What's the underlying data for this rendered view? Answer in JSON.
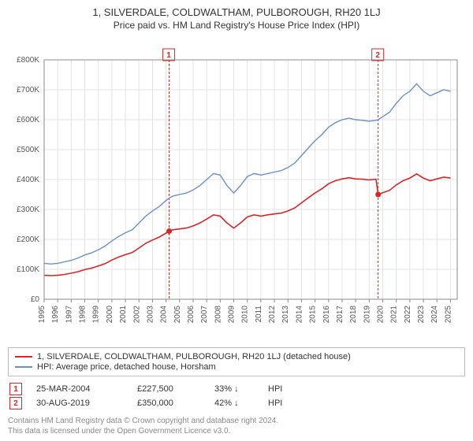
{
  "title": "1, SILVERDALE, COLDWALTHAM, PULBOROUGH, RH20 1LJ",
  "subtitle": "Price paid vs. HM Land Registry's House Price Index (HPI)",
  "chart": {
    "type": "line",
    "background_color": "#ffffff",
    "grid_color": "#e3e3e3",
    "axis_color": "#888888",
    "tick_font_size": 10,
    "tick_color": "#555555",
    "x": {
      "min": 1995,
      "max": 2025.5,
      "ticks": [
        1995,
        1996,
        1997,
        1998,
        1999,
        2000,
        2001,
        2002,
        2003,
        2004,
        2005,
        2006,
        2007,
        2008,
        2009,
        2010,
        2011,
        2012,
        2013,
        2014,
        2015,
        2016,
        2017,
        2018,
        2019,
        2020,
        2021,
        2022,
        2023,
        2024,
        2025
      ]
    },
    "y": {
      "min": 0,
      "max": 800000,
      "ticks": [
        0,
        100000,
        200000,
        300000,
        400000,
        500000,
        600000,
        700000,
        800000
      ],
      "tick_labels": [
        "£0",
        "£100K",
        "£200K",
        "£300K",
        "£400K",
        "£500K",
        "£600K",
        "£700K",
        "£800K"
      ]
    },
    "series": [
      {
        "id": "hpi",
        "label": "HPI: Average price, detached house, Horsham",
        "color": "#6b8fc9",
        "width": 1.4,
        "points": [
          [
            1995.0,
            120000
          ],
          [
            1995.5,
            118000
          ],
          [
            1996.0,
            120000
          ],
          [
            1996.5,
            125000
          ],
          [
            1997.0,
            130000
          ],
          [
            1997.5,
            138000
          ],
          [
            1998.0,
            148000
          ],
          [
            1998.5,
            155000
          ],
          [
            1999.0,
            165000
          ],
          [
            1999.5,
            178000
          ],
          [
            2000.0,
            195000
          ],
          [
            2000.5,
            210000
          ],
          [
            2001.0,
            222000
          ],
          [
            2001.5,
            232000
          ],
          [
            2002.0,
            255000
          ],
          [
            2002.5,
            278000
          ],
          [
            2003.0,
            295000
          ],
          [
            2003.5,
            310000
          ],
          [
            2004.0,
            330000
          ],
          [
            2004.23,
            338000
          ],
          [
            2004.5,
            345000
          ],
          [
            2005.0,
            350000
          ],
          [
            2005.5,
            355000
          ],
          [
            2006.0,
            365000
          ],
          [
            2006.5,
            380000
          ],
          [
            2007.0,
            400000
          ],
          [
            2007.5,
            420000
          ],
          [
            2008.0,
            415000
          ],
          [
            2008.5,
            380000
          ],
          [
            2009.0,
            355000
          ],
          [
            2009.5,
            380000
          ],
          [
            2010.0,
            410000
          ],
          [
            2010.5,
            420000
          ],
          [
            2011.0,
            415000
          ],
          [
            2011.5,
            420000
          ],
          [
            2012.0,
            425000
          ],
          [
            2012.5,
            430000
          ],
          [
            2013.0,
            440000
          ],
          [
            2013.5,
            455000
          ],
          [
            2014.0,
            480000
          ],
          [
            2014.5,
            505000
          ],
          [
            2015.0,
            530000
          ],
          [
            2015.5,
            550000
          ],
          [
            2016.0,
            575000
          ],
          [
            2016.5,
            590000
          ],
          [
            2017.0,
            600000
          ],
          [
            2017.5,
            605000
          ],
          [
            2018.0,
            600000
          ],
          [
            2018.5,
            598000
          ],
          [
            2019.0,
            595000
          ],
          [
            2019.5,
            598000
          ],
          [
            2019.66,
            600000
          ],
          [
            2020.0,
            610000
          ],
          [
            2020.5,
            625000
          ],
          [
            2021.0,
            655000
          ],
          [
            2021.5,
            680000
          ],
          [
            2022.0,
            695000
          ],
          [
            2022.5,
            720000
          ],
          [
            2023.0,
            695000
          ],
          [
            2023.5,
            680000
          ],
          [
            2024.0,
            690000
          ],
          [
            2024.5,
            700000
          ],
          [
            2025.0,
            695000
          ]
        ]
      },
      {
        "id": "property",
        "label": "1, SILVERDALE, COLDWALTHAM, PULBOROUGH, RH20 1LJ (detached house)",
        "color": "#d62728",
        "width": 1.6,
        "points": [
          [
            1995.0,
            80000
          ],
          [
            1995.5,
            79000
          ],
          [
            1996.0,
            80000
          ],
          [
            1996.5,
            83000
          ],
          [
            1997.0,
            87000
          ],
          [
            1997.5,
            92000
          ],
          [
            1998.0,
            99000
          ],
          [
            1998.5,
            104000
          ],
          [
            1999.0,
            111000
          ],
          [
            1999.5,
            119000
          ],
          [
            2000.0,
            131000
          ],
          [
            2000.5,
            141000
          ],
          [
            2001.0,
            149000
          ],
          [
            2001.5,
            156000
          ],
          [
            2002.0,
            171000
          ],
          [
            2002.5,
            187000
          ],
          [
            2003.0,
            198000
          ],
          [
            2003.5,
            208000
          ],
          [
            2004.0,
            221000
          ],
          [
            2004.23,
            227500
          ],
          [
            2004.5,
            232000
          ],
          [
            2005.0,
            235000
          ],
          [
            2005.5,
            238000
          ],
          [
            2006.0,
            245000
          ],
          [
            2006.5,
            255000
          ],
          [
            2007.0,
            268000
          ],
          [
            2007.5,
            282000
          ],
          [
            2008.0,
            278000
          ],
          [
            2008.5,
            255000
          ],
          [
            2009.0,
            238000
          ],
          [
            2009.5,
            255000
          ],
          [
            2010.0,
            275000
          ],
          [
            2010.5,
            282000
          ],
          [
            2011.0,
            278000
          ],
          [
            2011.5,
            282000
          ],
          [
            2012.0,
            285000
          ],
          [
            2012.5,
            288000
          ],
          [
            2013.0,
            295000
          ],
          [
            2013.5,
            305000
          ],
          [
            2014.0,
            322000
          ],
          [
            2014.5,
            339000
          ],
          [
            2015.0,
            355000
          ],
          [
            2015.5,
            369000
          ],
          [
            2016.0,
            386000
          ],
          [
            2016.5,
            396000
          ],
          [
            2017.0,
            402000
          ],
          [
            2017.5,
            406000
          ],
          [
            2018.0,
            402000
          ],
          [
            2018.5,
            401000
          ],
          [
            2019.0,
            399000
          ],
          [
            2019.5,
            401000
          ],
          [
            2019.66,
            350000
          ],
          [
            2020.0,
            356000
          ],
          [
            2020.5,
            364000
          ],
          [
            2021.0,
            382000
          ],
          [
            2021.5,
            396000
          ],
          [
            2022.0,
            405000
          ],
          [
            2022.5,
            419000
          ],
          [
            2023.0,
            405000
          ],
          [
            2023.5,
            396000
          ],
          [
            2024.0,
            402000
          ],
          [
            2024.5,
            408000
          ],
          [
            2025.0,
            405000
          ]
        ]
      }
    ],
    "sale_markers": [
      {
        "n": 1,
        "x": 2004.23,
        "y": 227500,
        "color": "#d62728"
      },
      {
        "n": 2,
        "x": 2019.66,
        "y": 350000,
        "color": "#d62728"
      }
    ],
    "marker_badge": {
      "border_color": "#d62728",
      "text_color": "#d62728",
      "bg": "#ffffff",
      "font_size": 10
    }
  },
  "legend": {
    "rows": [
      {
        "color": "#d62728",
        "label": "1, SILVERDALE, COLDWALTHAM, PULBOROUGH, RH20 1LJ (detached house)"
      },
      {
        "color": "#6b8fc9",
        "label": "HPI: Average price, detached house, Horsham"
      }
    ]
  },
  "marker_table": {
    "rows": [
      {
        "n": "1",
        "date": "25-MAR-2004",
        "price": "£227,500",
        "delta": "33%",
        "arrow": "↓",
        "ref": "HPI"
      },
      {
        "n": "2",
        "date": "30-AUG-2019",
        "price": "£350,000",
        "delta": "42%",
        "arrow": "↓",
        "ref": "HPI"
      }
    ]
  },
  "footnote": {
    "line1": "Contains HM Land Registry data © Crown copyright and database right 2024.",
    "line2": "This data is licensed under the Open Government Licence v3.0."
  }
}
